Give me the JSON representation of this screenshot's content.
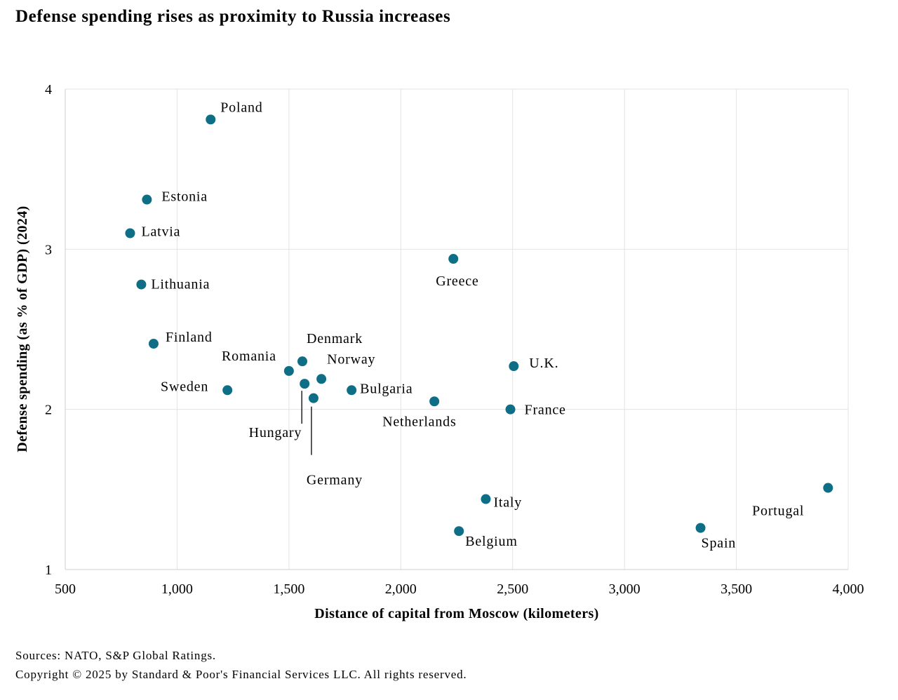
{
  "chart_data": {
    "type": "scatter",
    "title": "Defense spending rises as proximity to Russia increases",
    "xlabel": "Distance of capital from Moscow (kilometers)",
    "ylabel": "Defense spending (as % of GDP) (2024)",
    "xlim": [
      500,
      4000
    ],
    "ylim": [
      1,
      4
    ],
    "x_ticks": [
      500,
      1000,
      1500,
      2000,
      2500,
      3000,
      3500,
      4000
    ],
    "x_tick_labels": [
      "500",
      "1,000",
      "1,500",
      "2,000",
      "2,500",
      "3,000",
      "3,500",
      "4,000"
    ],
    "y_ticks": [
      1,
      2,
      3,
      4
    ],
    "y_tick_labels": [
      "1",
      "2",
      "3",
      "4"
    ],
    "grid": true,
    "marker_color": "#0d6e86",
    "points": [
      {
        "label": "Poland",
        "x": 1150,
        "y": 3.81
      },
      {
        "label": "Estonia",
        "x": 865,
        "y": 3.31
      },
      {
        "label": "Latvia",
        "x": 790,
        "y": 3.1
      },
      {
        "label": "Lithuania",
        "x": 840,
        "y": 2.78
      },
      {
        "label": "Greece",
        "x": 2235,
        "y": 2.94
      },
      {
        "label": "Finland",
        "x": 895,
        "y": 2.41
      },
      {
        "label": "Denmark",
        "x": 1560,
        "y": 2.3
      },
      {
        "label": "Romania",
        "x": 1500,
        "y": 2.24
      },
      {
        "label": "Norway",
        "x": 1645,
        "y": 2.19
      },
      {
        "label": "Sweden",
        "x": 1225,
        "y": 2.12
      },
      {
        "label": "Hungary",
        "x": 1570,
        "y": 2.16
      },
      {
        "label": "Germany",
        "x": 1610,
        "y": 2.07
      },
      {
        "label": "Bulgaria",
        "x": 1780,
        "y": 2.12
      },
      {
        "label": "Netherlands",
        "x": 2150,
        "y": 2.05
      },
      {
        "label": "U.K.",
        "x": 2505,
        "y": 2.27
      },
      {
        "label": "France",
        "x": 2490,
        "y": 2.0
      },
      {
        "label": "Italy",
        "x": 2380,
        "y": 1.44
      },
      {
        "label": "Belgium",
        "x": 2260,
        "y": 1.24
      },
      {
        "label": "Spain",
        "x": 3340,
        "y": 1.26
      },
      {
        "label": "Portugal",
        "x": 3910,
        "y": 1.51
      }
    ]
  },
  "footer": {
    "sources": "Sources: NATO, S&P Global Ratings.",
    "copyright": "Copyright © 2025 by Standard & Poor's Financial Services LLC. All rights reserved."
  }
}
